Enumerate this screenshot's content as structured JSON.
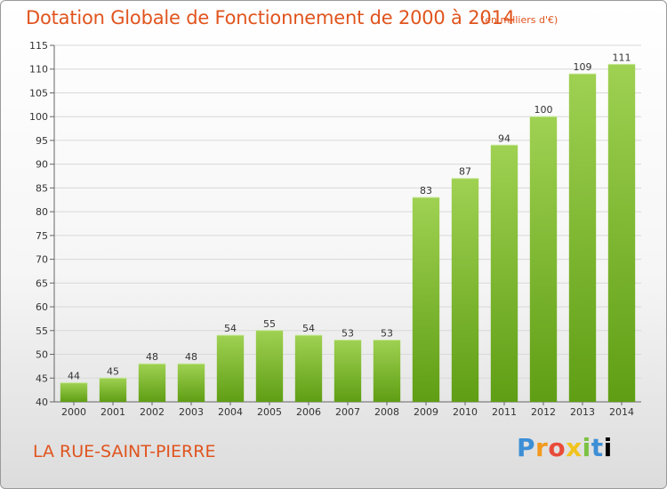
{
  "title": "Dotation Globale de Fonctionnement de 2000 à 2014",
  "subtitle": "(en milliers d'€)",
  "commune": "LA RUE-SAINT-PIERRE",
  "logo": [
    "P",
    "r",
    "o",
    "x",
    "i",
    "t",
    "i"
  ],
  "colors": {
    "accent": "#e0541e",
    "bar_top": "#9fd152",
    "bar_bottom": "#5f9e14",
    "grid": "#d8d8d8"
  },
  "chart_data": {
    "type": "bar",
    "title": "Dotation Globale de Fonctionnement de 2000 à 2014",
    "subtitle": "(en milliers d'€)",
    "categories": [
      "2000",
      "2001",
      "2002",
      "2003",
      "2004",
      "2005",
      "2006",
      "2007",
      "2008",
      "2009",
      "2010",
      "2011",
      "2012",
      "2013",
      "2014"
    ],
    "values": [
      44,
      45,
      48,
      48,
      54,
      55,
      54,
      53,
      53,
      83,
      87,
      94,
      100,
      109,
      111
    ],
    "ylim": [
      40,
      115
    ],
    "yticks": [
      40,
      45,
      50,
      55,
      60,
      65,
      70,
      75,
      80,
      85,
      90,
      95,
      100,
      105,
      110,
      115
    ],
    "grid": true,
    "xlabel": "",
    "ylabel": ""
  }
}
